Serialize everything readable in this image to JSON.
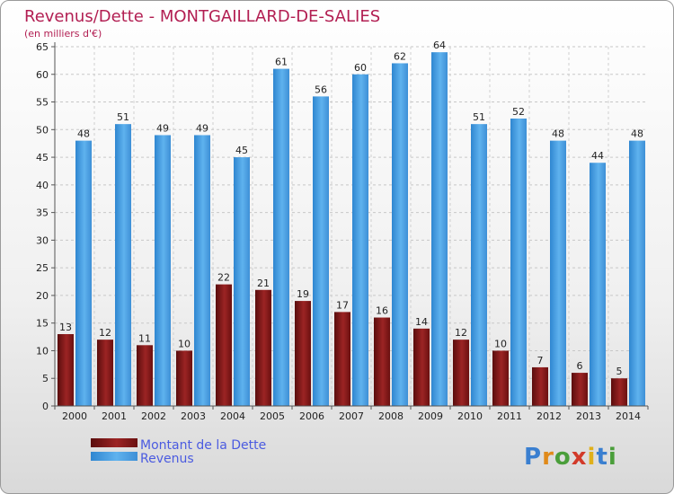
{
  "chart_data": {
    "type": "bar",
    "title": "Revenus/Dette - MONTGAILLARD-DE-SALIES",
    "subtitle": "(en milliers d'€)",
    "categories": [
      "2000",
      "2001",
      "2002",
      "2003",
      "2004",
      "2005",
      "2006",
      "2007",
      "2008",
      "2009",
      "2010",
      "2011",
      "2012",
      "2013",
      "2014"
    ],
    "series": [
      {
        "name": "Montant de la Dette",
        "color": "#8b1a1a",
        "values": [
          13,
          12,
          11,
          10,
          22,
          21,
          19,
          17,
          16,
          14,
          12,
          10,
          7,
          6,
          5
        ]
      },
      {
        "name": "Revenus",
        "color": "#4aa3e6",
        "values": [
          48,
          51,
          49,
          49,
          45,
          61,
          56,
          60,
          62,
          64,
          51,
          52,
          48,
          44,
          48
        ]
      }
    ],
    "ylim": [
      0,
      65
    ],
    "yticks": [
      0,
      5,
      10,
      15,
      20,
      25,
      30,
      35,
      40,
      45,
      50,
      55,
      60,
      65
    ],
    "grid": true,
    "legend_position": "bottom-left"
  },
  "logo": {
    "text": "Proxiti"
  }
}
